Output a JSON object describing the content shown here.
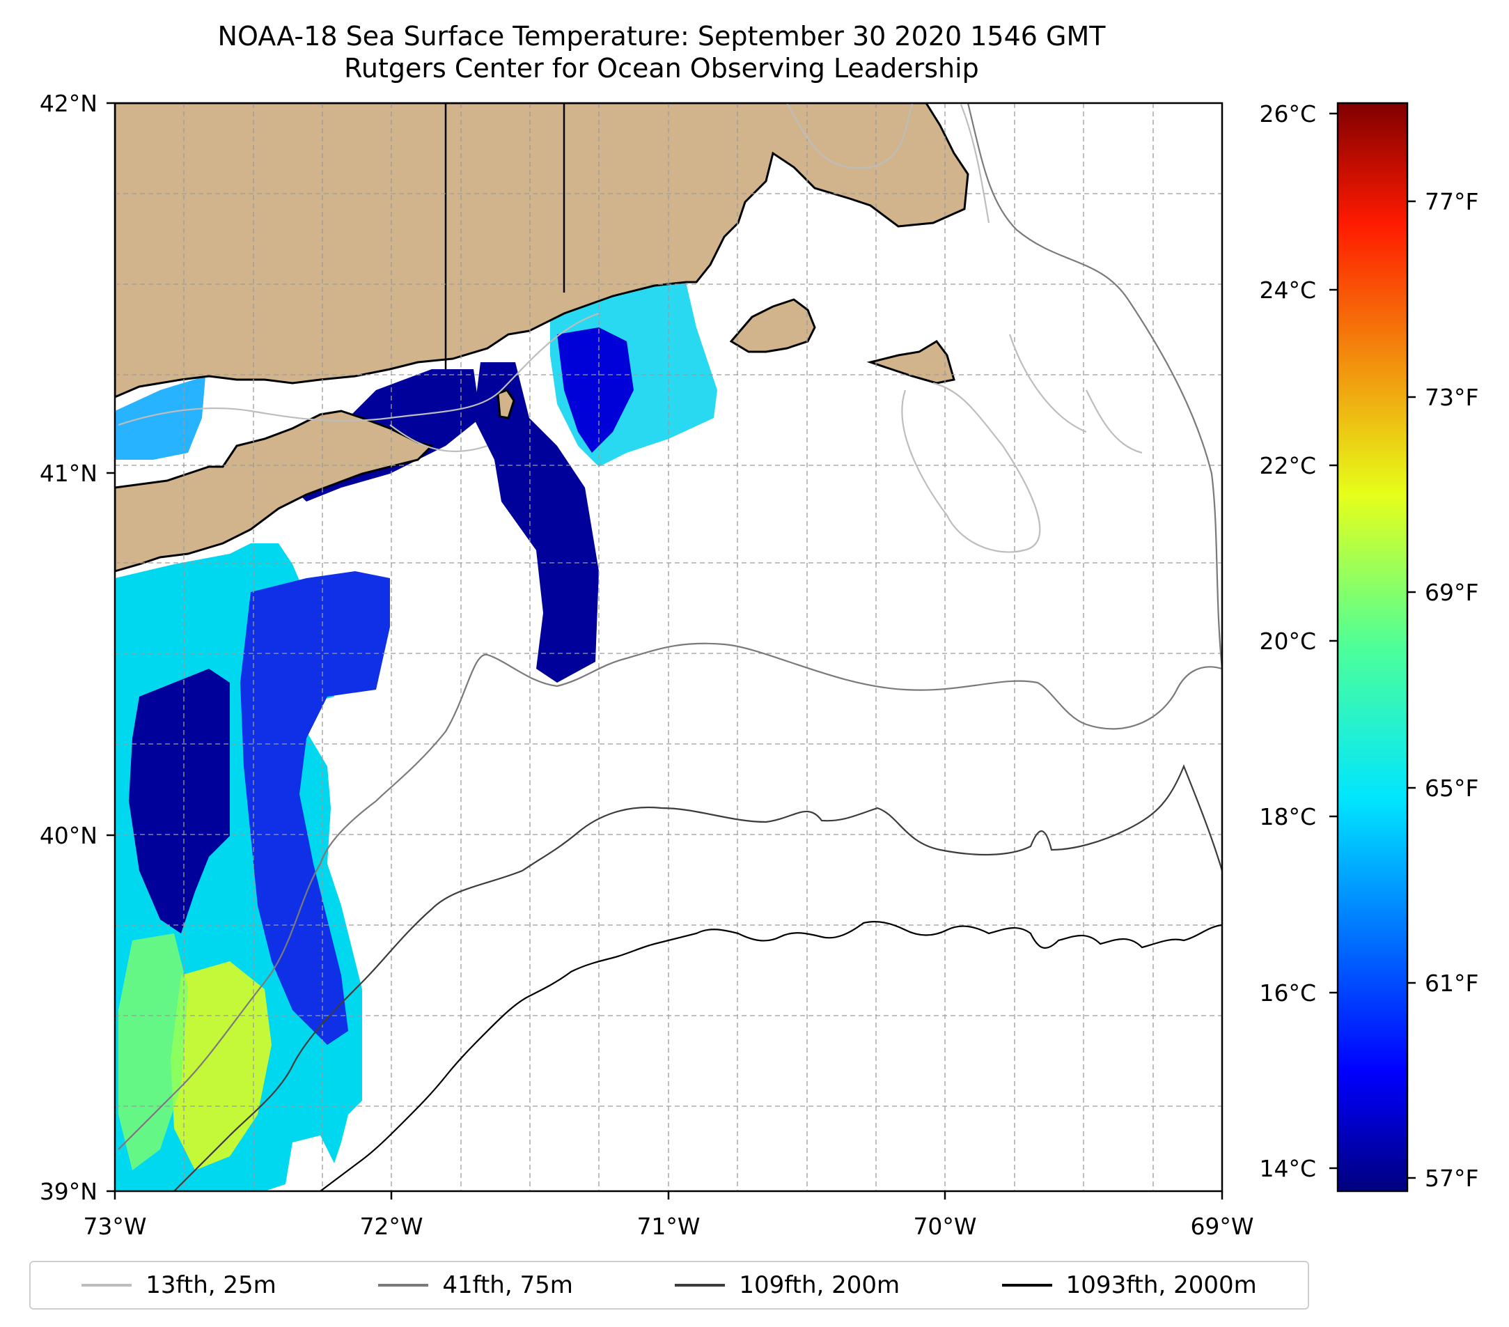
{
  "title": {
    "line1": "NOAA-18 Sea Surface Temperature: September 30 2020 1546 GMT",
    "line2": "Rutgers Center for Ocean Observing Leadership"
  },
  "axes": {
    "x_ticks": [
      "73°W",
      "72°W",
      "71°W",
      "70°W",
      "69°W"
    ],
    "y_ticks": [
      "42°N",
      "41°N",
      "40°N",
      "39°N"
    ]
  },
  "colorbar": {
    "celsius_ticks": [
      "26°C",
      "24°C",
      "22°C",
      "20°C",
      "18°C",
      "16°C",
      "14°C"
    ],
    "fahrenheit_ticks": [
      "77°F",
      "73°F",
      "69°F",
      "65°F",
      "61°F",
      "57°F"
    ],
    "colormap": "jet",
    "range_c": [
      13.8,
      26.2
    ]
  },
  "legend": {
    "items": [
      {
        "label": "13fth, 25m",
        "color": "#bdbdbd"
      },
      {
        "label": "41fth, 75m",
        "color": "#7a7a7a"
      },
      {
        "label": "109fth, 200m",
        "color": "#3c3c3c"
      },
      {
        "label": "1093fth, 2000m",
        "color": "#000000"
      }
    ]
  },
  "colors": {
    "land": "#d2b48c",
    "sst_cold": "#00008b",
    "sst_mid": "#00e5ff",
    "sst_warm": "#e6ff1a"
  }
}
